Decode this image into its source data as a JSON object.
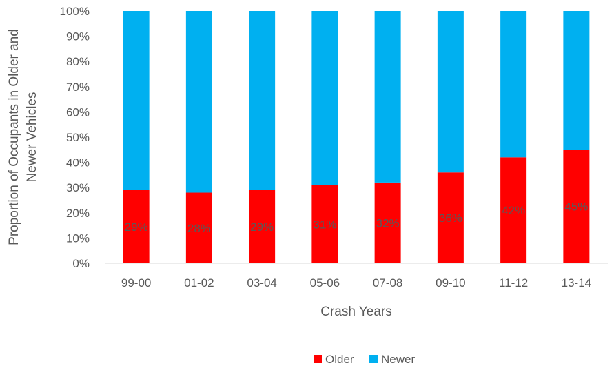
{
  "chart_data": {
    "type": "bar",
    "stacked": true,
    "categories": [
      "99-00",
      "01-02",
      "03-04",
      "05-06",
      "07-08",
      "09-10",
      "11-12",
      "13-14"
    ],
    "series": [
      {
        "name": "Older",
        "color": "#ff0000",
        "values": [
          29,
          28,
          29,
          31,
          32,
          36,
          42,
          45
        ],
        "data_labels": [
          "29%",
          "28%",
          "29%",
          "31%",
          "32%",
          "36%",
          "42%",
          "45%"
        ]
      },
      {
        "name": "Newer",
        "color": "#00b0f0",
        "values": [
          71,
          72,
          71,
          69,
          68,
          64,
          58,
          55
        ]
      }
    ],
    "xlabel": "Crash Years",
    "ylabel_lines": [
      "Proportion of Occupants in Older and",
      "Newer Vehicles"
    ],
    "ylim": [
      0,
      100
    ],
    "yticks": [
      "0%",
      "10%",
      "20%",
      "30%",
      "40%",
      "50%",
      "60%",
      "70%",
      "80%",
      "90%",
      "100%"
    ],
    "grid": false,
    "legend_position": "bottom"
  }
}
